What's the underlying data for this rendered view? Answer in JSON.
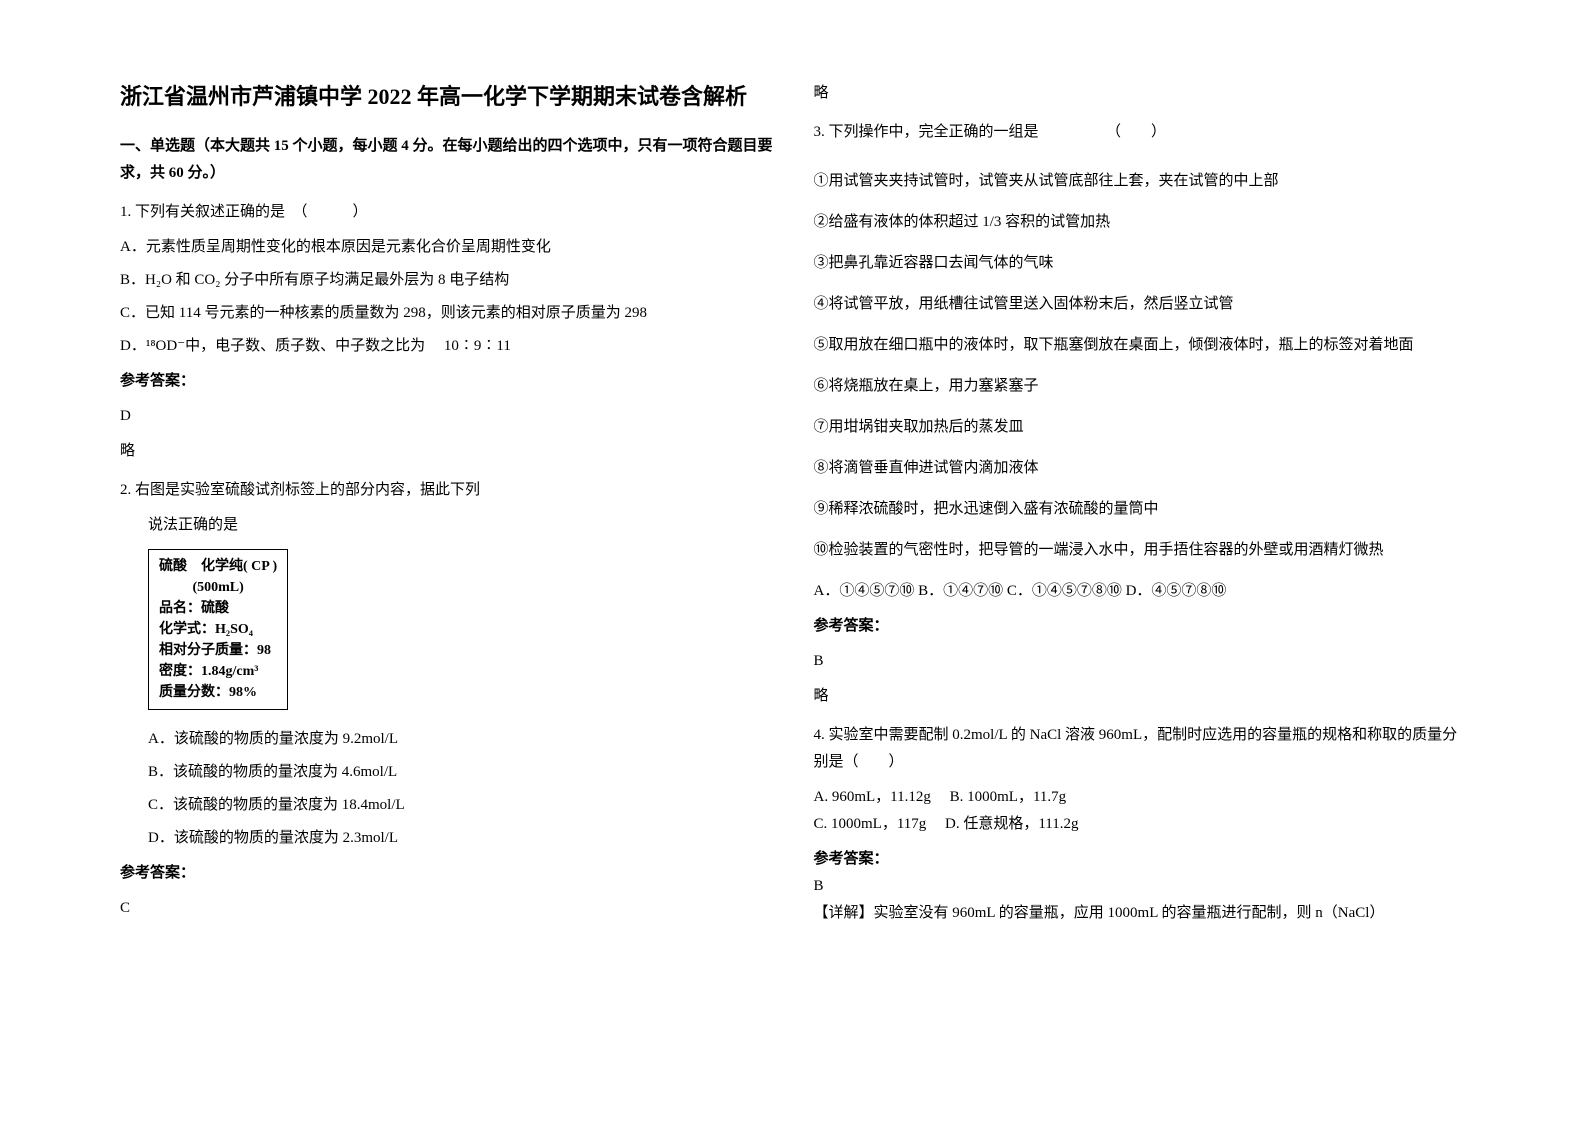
{
  "title": "浙江省温州市芦浦镇中学 2022 年高一化学下学期期末试卷含解析",
  "section1": {
    "header": "一、单选题（本大题共 15 个小题，每小题 4 分。在每小题给出的四个选项中，只有一项符合题目要求，共 60 分。）"
  },
  "q1": {
    "stem": "1. 下列有关叙述正确的是　（　　　）",
    "optA": "A．元素性质呈周期性变化的根本原因是元素化合价呈周期性变化",
    "optB": "B．H₂O 和 CO₂ 分子中所有原子均满足最外层为 8 电子结构",
    "optC": "C．已知 114 号元素的一种核素的质量数为 298，则该元素的相对原子质量为 298",
    "optD": "D．¹⁸OD⁻中，电子数、质子数、中子数之比为　 10∶9∶11",
    "ansLabel": "参考答案：",
    "ans": "D",
    "extra": "略"
  },
  "q2": {
    "stem": "2. 右图是实验室硫酸试剂标签上的部分内容，据此下列",
    "stem2": "说法正确的是",
    "box": {
      "l1": "硫酸　化学纯( CP )",
      "l2": "(500mL)",
      "l3": "品名：硫酸",
      "l4": "化学式：H₂SO₄",
      "l5": "相对分子质量：98",
      "l6": "密度：1.84g/cm³",
      "l7": "质量分数：98%"
    },
    "optA": "A．该硫酸的物质的量浓度为 9.2mol/L",
    "optB": "B．该硫酸的物质的量浓度为 4.6mol/L",
    "optC": "C．该硫酸的物质的量浓度为 18.4mol/L",
    "optD": "D．该硫酸的物质的量浓度为 2.3mol/L",
    "ansLabel": "参考答案：",
    "ans": "C"
  },
  "right": {
    "extra0": "略",
    "q3": {
      "stem": "3. 下列操作中，完全正确的一组是　　　　　（　　）",
      "i1": "①用试管夹夹持试管时，试管夹从试管底部往上套，夹在试管的中上部",
      "i2": "②给盛有液体的体积超过 1/3 容积的试管加热",
      "i3": "③把鼻孔靠近容器口去闻气体的气味",
      "i4": "④将试管平放，用纸槽往试管里送入固体粉末后，然后竖立试管",
      "i5": "⑤取用放在细口瓶中的液体时，取下瓶塞倒放在桌面上，倾倒液体时，瓶上的标签对着地面",
      "i6": "⑥将烧瓶放在桌上，用力塞紧塞子",
      "i7": "⑦用坩埚钳夹取加热后的蒸发皿",
      "i8": "⑧将滴管垂直伸进试管内滴加液体",
      "i9": "⑨稀释浓硫酸时，把水迅速倒入盛有浓硫酸的量筒中",
      "i10": "⑩检验装置的气密性时，把导管的一端浸入水中，用手捂住容器的外壁或用酒精灯微热",
      "opts": "A．①④⑤⑦⑩ B．①④⑦⑩ C．①④⑤⑦⑧⑩ D．④⑤⑦⑧⑩",
      "ansLabel": "参考答案：",
      "ans": "B",
      "extra": "略"
    },
    "q4": {
      "stem": "4. 实验室中需要配制 0.2mol/L 的 NaCl 溶液 960mL，配制时应选用的容量瓶的规格和称取的质量分别是（　　）",
      "optA": "A. 960mL，11.12g　 B. 1000mL，11.7g",
      "optB": "C. 1000mL，117g　 D. 任意规格，111.2g",
      "ansLabel": "参考答案：",
      "ans": "B",
      "expl": "【详解】实验室没有 960mL 的容量瓶，应用 1000mL 的容量瓶进行配制，则 n（NaCl）"
    }
  }
}
